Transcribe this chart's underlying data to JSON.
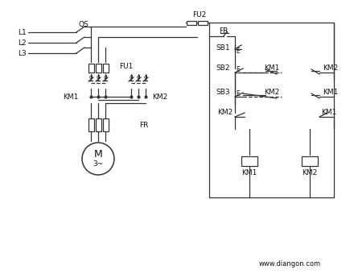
{
  "bg_color": "#f5f5f0",
  "line_color": "#333333",
  "dashed_color": "#555555",
  "text_color": "#222222",
  "watermark": "www.diangon.com",
  "labels": {
    "QS": "QS",
    "FU2": "FU2",
    "FU1": "FU1",
    "FR_top": "FR",
    "FR_bottom": "FR",
    "SB1": "SB1",
    "SB2": "SB2",
    "SB3": "SB3",
    "KM1_left": "KM1",
    "KM2_left": "KM2",
    "KM1_right_top": "KM1",
    "KM2_right_top": "KM2",
    "KM1_right_bot": "KM1",
    "KM2_right_bot": "KM2",
    "KM1_coil": "KM1",
    "KM2_coil": "KM2",
    "L1": "L1",
    "L2": "L2",
    "L3": "L3",
    "M": "M",
    "M_sub": "3~"
  }
}
